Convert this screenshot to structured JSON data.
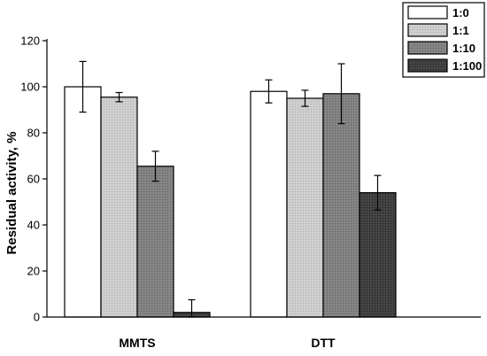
{
  "chart_data": {
    "type": "bar",
    "ylabel": "Residual activity, %",
    "xlabel": "",
    "ylim": [
      0,
      120
    ],
    "yticks": [
      "0",
      "20",
      "40",
      "60",
      "80",
      "100",
      "120"
    ],
    "categories": [
      "MMTS",
      "DTT"
    ],
    "legend_position": "top-right",
    "grid": false,
    "series": [
      {
        "name": "1:0",
        "values": [
          100,
          98
        ],
        "errors": [
          11,
          5
        ],
        "color": "#ffffff"
      },
      {
        "name": "1:1",
        "values": [
          95.5,
          95
        ],
        "errors": [
          2,
          3.5
        ],
        "color": "#c8c8c8"
      },
      {
        "name": "1:10",
        "values": [
          65.5,
          97
        ],
        "errors": [
          6.5,
          13
        ],
        "color": "#7f7f7f"
      },
      {
        "name": "1:100",
        "values": [
          2,
          54
        ],
        "errors": [
          5.5,
          7.5
        ],
        "color": "#3c3c3c"
      }
    ]
  }
}
